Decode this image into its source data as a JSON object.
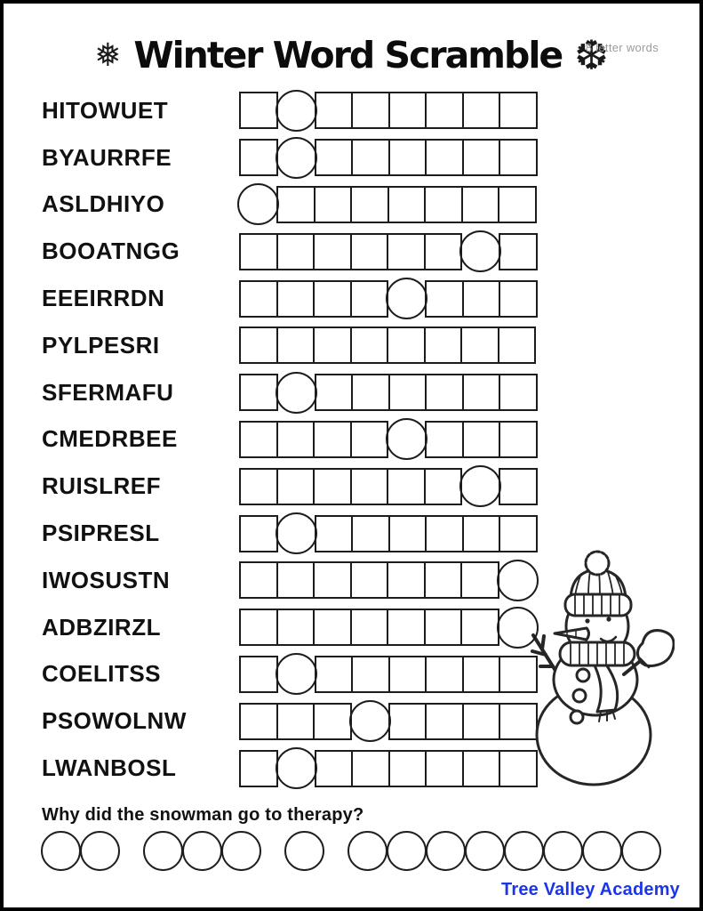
{
  "header": {
    "title": "Winter Word Scramble",
    "subtitle": "8 letter words",
    "left_snowflake": "❅",
    "right_snowflake": "❆"
  },
  "puzzle": {
    "boxes_per_word": 8,
    "rows": [
      {
        "word": "HITOWUET",
        "circled_box": 2
      },
      {
        "word": "BYAURRFE",
        "circled_box": 2
      },
      {
        "word": "ASLDHIYO",
        "circled_box": 1
      },
      {
        "word": "BOOATNGG",
        "circled_box": 7
      },
      {
        "word": "EEEIRRDN",
        "circled_box": 5
      },
      {
        "word": "PYLPESRI",
        "circled_box": 0
      },
      {
        "word": "SFERMAFU",
        "circled_box": 2
      },
      {
        "word": "CMEDRBEE",
        "circled_box": 5
      },
      {
        "word": "RUISLREF",
        "circled_box": 7
      },
      {
        "word": "PSIPRESL",
        "circled_box": 2
      },
      {
        "word": "IWOSUSTN",
        "circled_box": 8
      },
      {
        "word": "ADBZIRZL",
        "circled_box": 8
      },
      {
        "word": "COELITSS",
        "circled_box": 2
      },
      {
        "word": "PSOWOLNW",
        "circled_box": 4
      },
      {
        "word": "LWANBOSL",
        "circled_box": 2
      }
    ]
  },
  "riddle": {
    "question": "Why did the snowman go to therapy?",
    "answer_letter_groups": [
      2,
      3,
      1,
      8
    ]
  },
  "illustration": {
    "name": "snowman"
  },
  "footer": {
    "brand": "Tree Valley Academy"
  },
  "colors": {
    "brand_blue": "#1a36e8",
    "line_black": "#1c1c1c",
    "subtitle_gray": "#9b9b9b"
  }
}
